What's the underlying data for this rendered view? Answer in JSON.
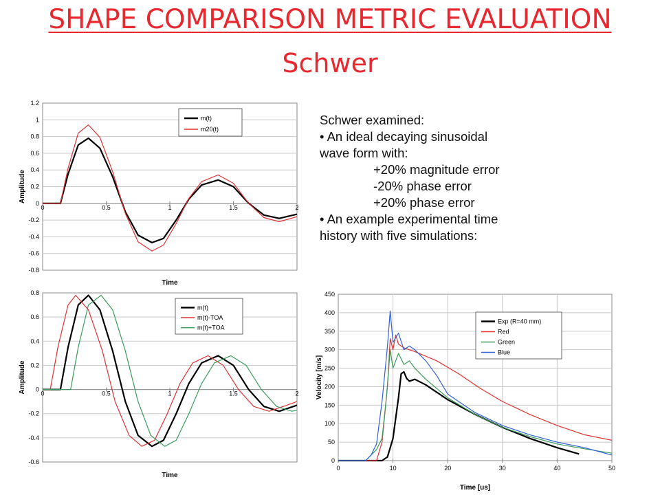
{
  "slide": {
    "title": "SHAPE COMPARISON METRIC EVALUATION",
    "subtitle": "Schwer"
  },
  "notes": {
    "heading": "Schwer examined:",
    "bullet1_a": "•  An ideal decaying sinusoidal",
    "bullet1_b": "wave form with:",
    "item1": "+20% magnitude error",
    "item2": "-20% phase error",
    "item3": "+20% phase error",
    "bullet2_a": "• An example experimental time",
    "bullet2_b": "history with five simulations:"
  },
  "colors": {
    "title": "#e8282f",
    "black": "#000000",
    "red": "#e03030",
    "green": "#3a9a5a",
    "blue": "#3060d8"
  },
  "chart_data": [
    {
      "type": "line",
      "xlabel": "Time",
      "ylabel": "Amplitude",
      "xlim": [
        0,
        2
      ],
      "ylim": [
        -0.8,
        1.2
      ],
      "xticks": [
        "0",
        "0.5",
        "1",
        "1.5",
        "2"
      ],
      "yticks": [
        "1.2",
        "1",
        "0.8",
        "0.6",
        "0.4",
        "0.2",
        "0",
        "-0.2",
        "-0.4",
        "-0.6",
        "-0.8"
      ],
      "legend_position": "top-right",
      "series": [
        {
          "name": "m(t)",
          "color": "#000000",
          "x": [
            0,
            0.14,
            0.2,
            0.28,
            0.36,
            0.45,
            0.55,
            0.65,
            0.75,
            0.86,
            0.95,
            1.05,
            1.15,
            1.25,
            1.38,
            1.5,
            1.62,
            1.74,
            1.86,
            2.0
          ],
          "y": [
            0,
            0,
            0.35,
            0.7,
            0.78,
            0.66,
            0.32,
            -0.1,
            -0.38,
            -0.47,
            -0.42,
            -0.2,
            0.05,
            0.22,
            0.28,
            0.2,
            0.0,
            -0.14,
            -0.18,
            -0.13
          ]
        },
        {
          "name": "m20(t)",
          "color": "#e03030",
          "x": [
            0,
            0.14,
            0.2,
            0.28,
            0.36,
            0.45,
            0.55,
            0.65,
            0.75,
            0.86,
            0.95,
            1.05,
            1.15,
            1.25,
            1.38,
            1.5,
            1.62,
            1.74,
            1.86,
            2.0
          ],
          "y": [
            0,
            0,
            0.42,
            0.84,
            0.94,
            0.79,
            0.38,
            -0.12,
            -0.46,
            -0.57,
            -0.5,
            -0.24,
            0.06,
            0.26,
            0.34,
            0.24,
            0.0,
            -0.17,
            -0.22,
            -0.16
          ]
        }
      ]
    },
    {
      "type": "line",
      "xlabel": "Time",
      "ylabel": "Amplitude",
      "xlim": [
        0,
        2
      ],
      "ylim": [
        -0.6,
        0.8
      ],
      "xticks": [
        "0",
        "0.5",
        "1",
        "1.5",
        "2"
      ],
      "yticks": [
        "0.8",
        "0.6",
        "0.4",
        "0.2",
        "0",
        "-0.2",
        "-0.4",
        "-0.6"
      ],
      "legend_position": "top-right",
      "series": [
        {
          "name": "m(t)",
          "color": "#000000",
          "x": [
            0,
            0.14,
            0.2,
            0.28,
            0.36,
            0.45,
            0.55,
            0.65,
            0.75,
            0.86,
            0.95,
            1.05,
            1.15,
            1.25,
            1.38,
            1.5,
            1.62,
            1.74,
            1.86,
            2.0
          ],
          "y": [
            0,
            0,
            0.35,
            0.7,
            0.78,
            0.66,
            0.32,
            -0.1,
            -0.38,
            -0.47,
            -0.42,
            -0.2,
            0.05,
            0.22,
            0.28,
            0.2,
            0.0,
            -0.14,
            -0.18,
            -0.13
          ]
        },
        {
          "name": "m(t)-TOA",
          "color": "#e03030",
          "x": [
            0,
            0.06,
            0.12,
            0.2,
            0.26,
            0.36,
            0.47,
            0.57,
            0.68,
            0.78,
            0.88,
            0.98,
            1.08,
            1.18,
            1.3,
            1.42,
            1.54,
            1.66,
            1.78,
            1.92,
            2.0
          ],
          "y": [
            0,
            0.0,
            0.35,
            0.7,
            0.78,
            0.66,
            0.32,
            -0.1,
            -0.38,
            -0.47,
            -0.42,
            -0.2,
            0.05,
            0.22,
            0.28,
            0.2,
            0.0,
            -0.14,
            -0.18,
            -0.13,
            -0.1
          ]
        },
        {
          "name": "m(t)+TOA",
          "color": "#3a9a5a",
          "x": [
            0,
            0.22,
            0.28,
            0.36,
            0.46,
            0.55,
            0.65,
            0.75,
            0.85,
            0.96,
            1.05,
            1.15,
            1.25,
            1.35,
            1.48,
            1.6,
            1.72,
            1.84,
            1.96,
            2.0
          ],
          "y": [
            0,
            0,
            0.35,
            0.7,
            0.78,
            0.66,
            0.32,
            -0.1,
            -0.38,
            -0.47,
            -0.42,
            -0.2,
            0.05,
            0.22,
            0.28,
            0.2,
            0.0,
            -0.14,
            -0.18,
            -0.17
          ]
        }
      ]
    },
    {
      "type": "line",
      "xlabel": "Time [us]",
      "ylabel": "Velocity [m/s]",
      "xlim": [
        0,
        50
      ],
      "ylim": [
        0,
        450
      ],
      "xticks": [
        "0",
        "10",
        "20",
        "30",
        "40",
        "50"
      ],
      "yticks": [
        "450",
        "400",
        "350",
        "300",
        "250",
        "200",
        "150",
        "100",
        "50",
        "0"
      ],
      "legend_position": "top-right",
      "series": [
        {
          "name": "Exp (R=40 mm)",
          "color": "#000000",
          "x": [
            0,
            8,
            9,
            10,
            11,
            11.5,
            12,
            12.5,
            13,
            14,
            16,
            20,
            25,
            30,
            35,
            40,
            44
          ],
          "y": [
            0,
            0,
            10,
            60,
            170,
            235,
            240,
            222,
            215,
            220,
            205,
            165,
            125,
            90,
            60,
            35,
            18
          ]
        },
        {
          "name": "Red",
          "color": "#e03030",
          "x": [
            0,
            7,
            8,
            9,
            9.5,
            10,
            10.5,
            11,
            12,
            14,
            18,
            22,
            26,
            30,
            35,
            40,
            45,
            50
          ],
          "y": [
            0,
            0,
            50,
            200,
            330,
            300,
            340,
            315,
            305,
            295,
            270,
            235,
            195,
            160,
            125,
            95,
            70,
            55
          ]
        },
        {
          "name": "Green",
          "color": "#3a9a5a",
          "x": [
            0,
            5,
            6,
            7,
            8,
            8.8,
            9.5,
            10,
            11,
            12,
            13,
            14,
            16,
            20,
            25,
            30,
            35,
            40,
            45,
            50
          ],
          "y": [
            0,
            0,
            15,
            30,
            60,
            170,
            300,
            250,
            290,
            260,
            270,
            250,
            220,
            170,
            125,
            90,
            65,
            45,
            32,
            20
          ]
        },
        {
          "name": "Blue",
          "color": "#3060d8",
          "x": [
            0,
            5,
            6,
            7,
            8,
            9,
            9.5,
            10,
            11,
            12,
            13,
            14,
            16,
            18,
            20,
            25,
            30,
            35,
            40,
            45,
            50
          ],
          "y": [
            0,
            0,
            15,
            45,
            160,
            310,
            405,
            320,
            345,
            300,
            310,
            300,
            270,
            230,
            180,
            130,
            95,
            70,
            50,
            35,
            15
          ]
        }
      ]
    }
  ]
}
